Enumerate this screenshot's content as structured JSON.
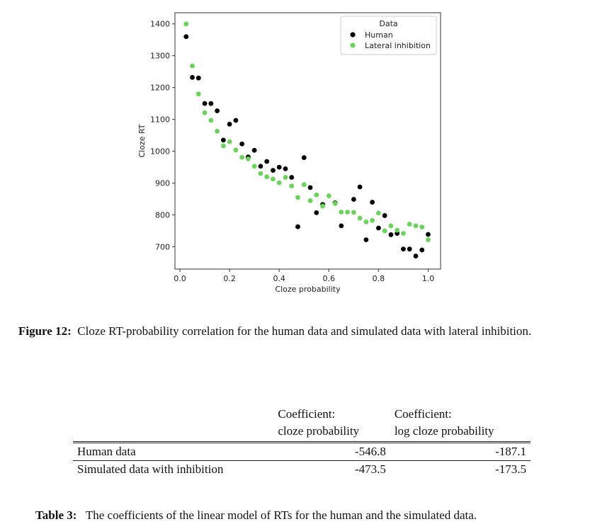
{
  "chart_data": {
    "type": "scatter",
    "xlabel": "Cloze probability",
    "ylabel": "Cloze RT",
    "xlim": [
      -0.02,
      1.05
    ],
    "ylim": [
      630,
      1435
    ],
    "xticks": [
      0.0,
      0.2,
      0.4,
      0.6,
      0.8,
      1.0
    ],
    "xtick_labels": [
      "0.0",
      "0.2",
      "0.4",
      "0.6",
      "0.8",
      "1.0"
    ],
    "yticks": [
      700,
      800,
      900,
      1000,
      1100,
      1200,
      1300,
      1400
    ],
    "ytick_labels": [
      "700",
      "800",
      "900",
      "1000",
      "1100",
      "1200",
      "1300",
      "1400"
    ],
    "grid": false,
    "legend": {
      "title": "Data",
      "position": "top-right"
    },
    "series": [
      {
        "name": "Human",
        "color": "#000000",
        "points": [
          [
            0.025,
            1360
          ],
          [
            0.05,
            1232
          ],
          [
            0.075,
            1230
          ],
          [
            0.1,
            1150
          ],
          [
            0.125,
            1150
          ],
          [
            0.15,
            1127
          ],
          [
            0.175,
            1035
          ],
          [
            0.2,
            1085
          ],
          [
            0.225,
            1097
          ],
          [
            0.25,
            1023
          ],
          [
            0.275,
            982
          ],
          [
            0.3,
            1003
          ],
          [
            0.325,
            953
          ],
          [
            0.35,
            968
          ],
          [
            0.375,
            940
          ],
          [
            0.4,
            950
          ],
          [
            0.425,
            945
          ],
          [
            0.45,
            918
          ],
          [
            0.475,
            763
          ],
          [
            0.5,
            980
          ],
          [
            0.525,
            886
          ],
          [
            0.55,
            807
          ],
          [
            0.575,
            833
          ],
          [
            0.625,
            838
          ],
          [
            0.65,
            766
          ],
          [
            0.7,
            849
          ],
          [
            0.725,
            888
          ],
          [
            0.75,
            722
          ],
          [
            0.775,
            840
          ],
          [
            0.8,
            759
          ],
          [
            0.825,
            798
          ],
          [
            0.85,
            738
          ],
          [
            0.875,
            742
          ],
          [
            0.9,
            693
          ],
          [
            0.925,
            693
          ],
          [
            0.95,
            671
          ],
          [
            0.975,
            690
          ],
          [
            1.0,
            739
          ]
        ]
      },
      {
        "name": "Lateral inhibition",
        "color": "#6ad35a",
        "points": [
          [
            0.025,
            1400
          ],
          [
            0.05,
            1268
          ],
          [
            0.075,
            1180
          ],
          [
            0.1,
            1121
          ],
          [
            0.125,
            1097
          ],
          [
            0.15,
            1063
          ],
          [
            0.175,
            1017
          ],
          [
            0.2,
            1030
          ],
          [
            0.225,
            1004
          ],
          [
            0.25,
            981
          ],
          [
            0.275,
            976
          ],
          [
            0.3,
            953
          ],
          [
            0.325,
            930
          ],
          [
            0.35,
            920
          ],
          [
            0.375,
            913
          ],
          [
            0.4,
            901
          ],
          [
            0.425,
            918
          ],
          [
            0.45,
            891
          ],
          [
            0.475,
            855
          ],
          [
            0.5,
            895
          ],
          [
            0.525,
            845
          ],
          [
            0.55,
            863
          ],
          [
            0.575,
            828
          ],
          [
            0.6,
            860
          ],
          [
            0.625,
            836
          ],
          [
            0.65,
            809
          ],
          [
            0.675,
            809
          ],
          [
            0.7,
            808
          ],
          [
            0.725,
            790
          ],
          [
            0.75,
            778
          ],
          [
            0.775,
            783
          ],
          [
            0.8,
            806
          ],
          [
            0.825,
            750
          ],
          [
            0.85,
            766
          ],
          [
            0.875,
            752
          ],
          [
            0.9,
            742
          ],
          [
            0.925,
            771
          ],
          [
            0.95,
            766
          ],
          [
            0.975,
            762
          ],
          [
            1.0,
            722
          ]
        ]
      }
    ]
  },
  "figure_caption": {
    "label": "Figure 12:",
    "text": "Cloze RT-probability correlation for the human data and simulated data with lateral inhibition."
  },
  "table": {
    "header": {
      "col1_line1": "Coefficient:",
      "col1_line2": "cloze probability",
      "col2_line1": "Coefficient:",
      "col2_line2": "log cloze probability"
    },
    "rows": [
      {
        "label": "Human data",
        "coef": "-546.8",
        "log_coef": "-187.1"
      },
      {
        "label": "Simulated data with inhibition",
        "coef": "-473.5",
        "log_coef": "-173.5"
      }
    ]
  },
  "table_caption": {
    "label": "Table 3:",
    "text": "The coefficients of the linear model of RTs for the human and the simulated data."
  }
}
